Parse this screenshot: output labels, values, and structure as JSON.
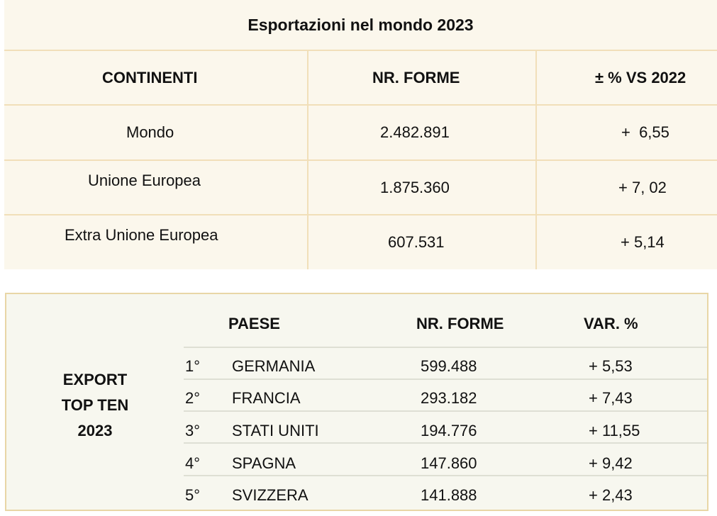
{
  "top_table": {
    "title": "Esportazioni nel mondo 2023",
    "headers": [
      "CONTINENTI",
      "NR. FORME",
      "± % VS 2022"
    ],
    "rows": [
      {
        "area": "Mondo",
        "forms": "2.482.891",
        "change": "+  6,55"
      },
      {
        "area": "Unione Europea",
        "forms": "1.875.360",
        "change": "+ 7, 02"
      },
      {
        "area": "Extra Unione Europea",
        "forms": "607.531",
        "change": "+ 5,14"
      }
    ]
  },
  "bottom_table": {
    "side_label": [
      "EXPORT",
      "TOP TEN",
      "2023"
    ],
    "headers": [
      "PAESE",
      "NR. FORME",
      "VAR. %"
    ],
    "rows": [
      {
        "rank": "1°",
        "country": "GERMANIA",
        "forms": "599.488",
        "change": "+ 5,53"
      },
      {
        "rank": "2°",
        "country": "FRANCIA",
        "forms": "293.182",
        "change": "+ 7,43"
      },
      {
        "rank": "3°",
        "country": "STATI UNITI",
        "forms": "194.776",
        "change": "+ 11,55"
      },
      {
        "rank": "4°",
        "country": "SPAGNA",
        "forms": "147.860",
        "change": "+ 9,42"
      },
      {
        "rank": "5°",
        "country": "SVIZZERA",
        "forms": "141.888",
        "change": "+ 2,43"
      }
    ]
  },
  "colors": {
    "top_background": "#fbf7ec",
    "top_grid": "#f1dfb9",
    "bottom_background": "#f7f7ef",
    "bottom_border": "#e8d6a6"
  }
}
